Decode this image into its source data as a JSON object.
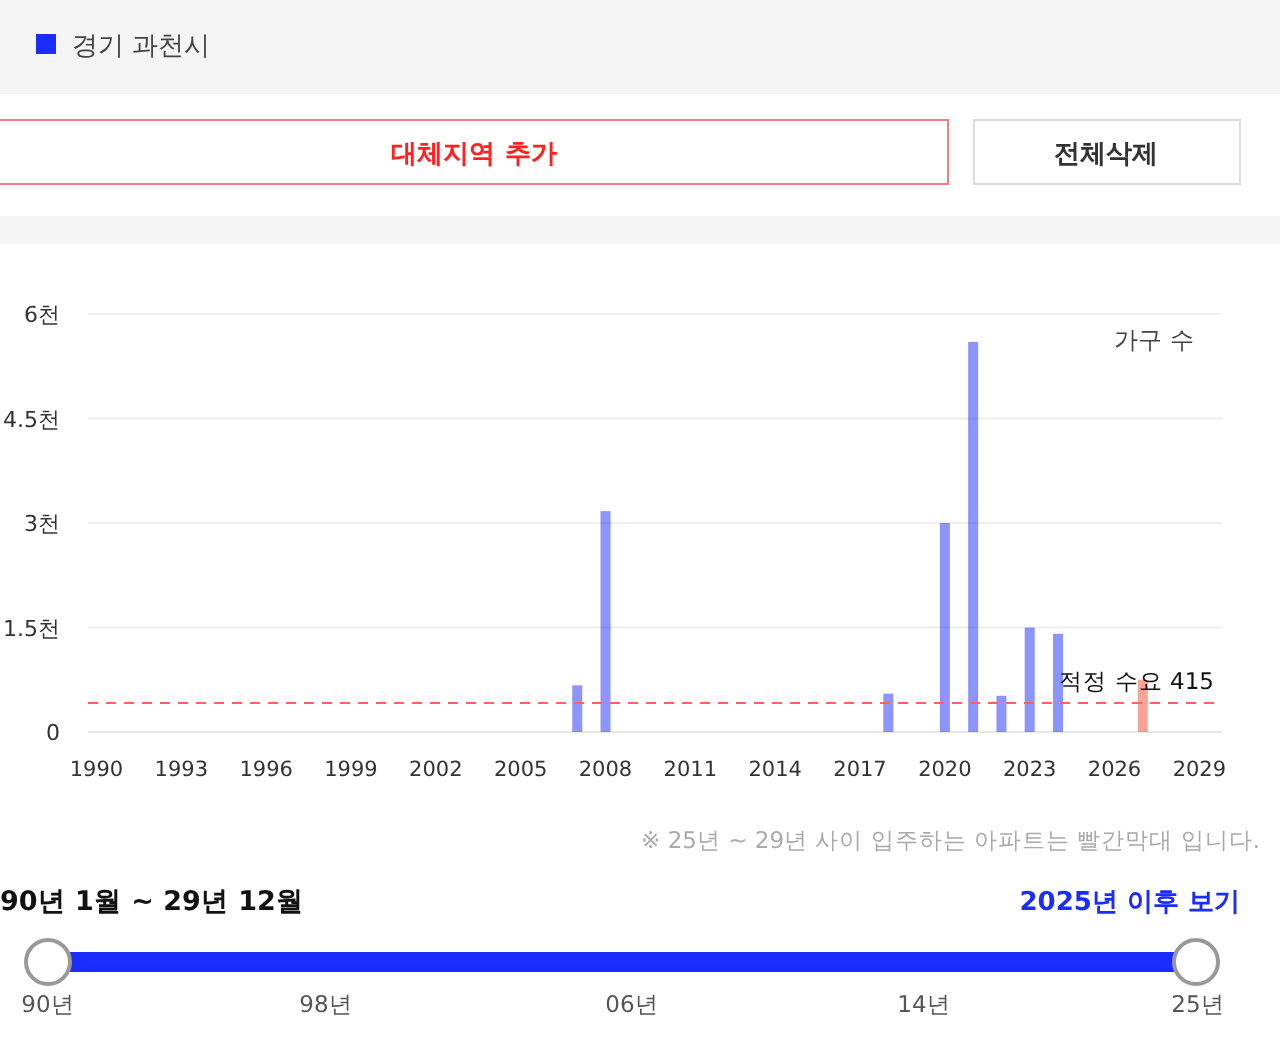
{
  "chart_data": {
    "type": "bar",
    "ylabel": "가구 수",
    "x": [
      2007,
      2008,
      2018,
      2020,
      2021,
      2022,
      2023,
      2024,
      2027
    ],
    "series": [
      {
        "name": "경기 과천시",
        "color": "#1a2cff",
        "values": [
          0.67,
          3.17,
          0.55,
          3.0,
          5.6,
          0.52,
          1.5,
          1.41,
          0.75
        ],
        "colors": [
          "#1a2cff",
          "#1a2cff",
          "#1a2cff",
          "#1a2cff",
          "#1a2cff",
          "#1a2cff",
          "#1a2cff",
          "#1a2cff",
          "#f24a30"
        ]
      }
    ],
    "xlim": [
      1989.7,
      2029.8
    ],
    "xticks": [
      1990,
      1993,
      1996,
      1999,
      2002,
      2005,
      2008,
      2011,
      2014,
      2017,
      2020,
      2023,
      2026,
      2029
    ],
    "ylim": [
      0,
      6
    ],
    "yticks": [
      0,
      {
        "value": 1.5,
        "label": "1.5천"
      },
      {
        "value": 3,
        "label": "3천"
      },
      {
        "value": 4.5,
        "label": "4.5천"
      },
      {
        "value": 6,
        "label": "6천"
      }
    ],
    "grid": "y",
    "legend": "top left",
    "ref_lines": [
      {
        "axis": "y",
        "value": 0.415,
        "label": "적정 수요 415",
        "color": "#ff6060",
        "line_style": "dashed"
      }
    ],
    "annotations": [
      "대체지역 추가",
      "전체삭제",
      "※ 25년 ~ 29년 사이 입주하는 아파트는 빨간막대 입니다.",
      "90년 1월 ~ 29년 12월",
      "2025년 이후 보기",
      "90년",
      "98년",
      "06년",
      "14년",
      "25년"
    ]
  }
}
